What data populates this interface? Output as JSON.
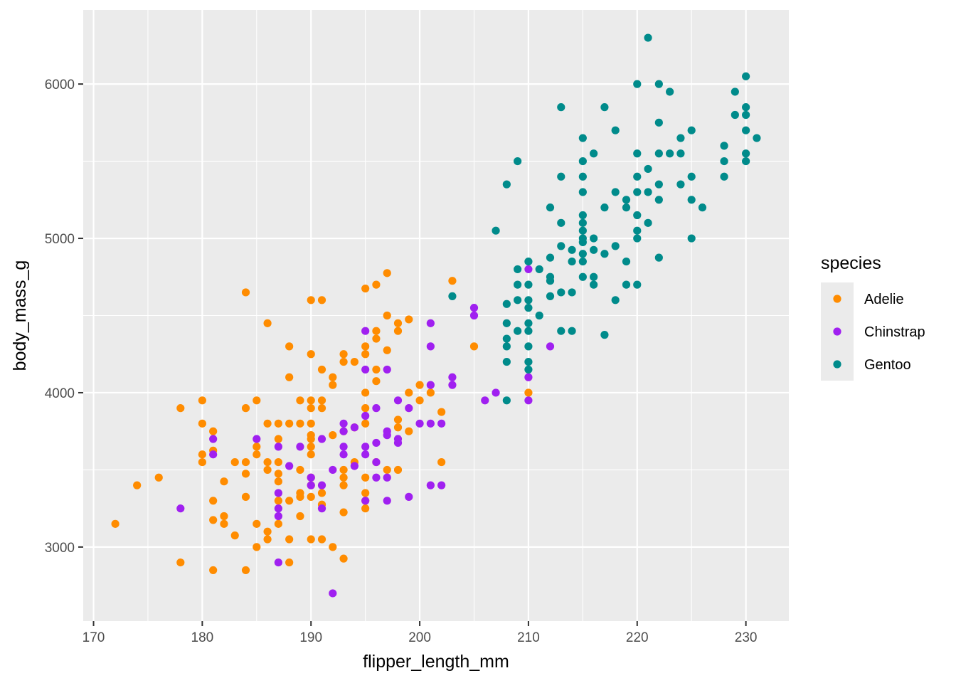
{
  "chart_data": {
    "type": "scatter",
    "title": "",
    "xlabel": "flipper_length_mm",
    "ylabel": "body_mass_g",
    "xlim": [
      169.05,
      233.95
    ],
    "ylim": [
      2520,
      6480
    ],
    "x_ticks": [
      170,
      180,
      190,
      200,
      210,
      220,
      230
    ],
    "y_ticks": [
      3000,
      4000,
      5000,
      6000
    ],
    "grid": true,
    "legend": {
      "title": "species",
      "position": "right"
    },
    "series": [
      {
        "name": "Adelie",
        "color": "#FF8C00",
        "points": [
          [
            172,
            3150
          ],
          [
            174,
            3400
          ],
          [
            176,
            3450
          ],
          [
            178,
            3900
          ],
          [
            178,
            2900
          ],
          [
            180,
            3950
          ],
          [
            180,
            3800
          ],
          [
            180,
            3600
          ],
          [
            180,
            3550
          ],
          [
            181,
            3750
          ],
          [
            181,
            3625
          ],
          [
            181,
            3300
          ],
          [
            181,
            3175
          ],
          [
            181,
            2850
          ],
          [
            182,
            3425
          ],
          [
            182,
            3200
          ],
          [
            182,
            3150
          ],
          [
            183,
            3550
          ],
          [
            183,
            3075
          ],
          [
            184,
            4650
          ],
          [
            184,
            3900
          ],
          [
            184,
            3550
          ],
          [
            184,
            3475
          ],
          [
            184,
            3325
          ],
          [
            184,
            2850
          ],
          [
            185,
            3950
          ],
          [
            185,
            3650
          ],
          [
            185,
            3600
          ],
          [
            185,
            3150
          ],
          [
            185,
            3000
          ],
          [
            186,
            4450
          ],
          [
            186,
            3800
          ],
          [
            186,
            3550
          ],
          [
            186,
            3500
          ],
          [
            186,
            3100
          ],
          [
            186,
            3050
          ],
          [
            187,
            3800
          ],
          [
            187,
            3700
          ],
          [
            187,
            3550
          ],
          [
            187,
            3475
          ],
          [
            187,
            3425
          ],
          [
            187,
            3300
          ],
          [
            187,
            3150
          ],
          [
            188,
            4300
          ],
          [
            188,
            4100
          ],
          [
            188,
            3800
          ],
          [
            188,
            3300
          ],
          [
            188,
            3050
          ],
          [
            188,
            2900
          ],
          [
            189,
            3950
          ],
          [
            189,
            3800
          ],
          [
            189,
            3500
          ],
          [
            189,
            3350
          ],
          [
            189,
            3325
          ],
          [
            189,
            3200
          ],
          [
            190,
            4600
          ],
          [
            190,
            4250
          ],
          [
            190,
            3950
          ],
          [
            190,
            3900
          ],
          [
            190,
            3800
          ],
          [
            190,
            3725
          ],
          [
            190,
            3700
          ],
          [
            190,
            3650
          ],
          [
            190,
            3600
          ],
          [
            190,
            3450
          ],
          [
            190,
            3400
          ],
          [
            190,
            3325
          ],
          [
            190,
            3050
          ],
          [
            191,
            4600
          ],
          [
            191,
            4150
          ],
          [
            191,
            3950
          ],
          [
            191,
            3900
          ],
          [
            191,
            3350
          ],
          [
            191,
            3275
          ],
          [
            191,
            3050
          ],
          [
            192,
            4100
          ],
          [
            192,
            4050
          ],
          [
            192,
            3725
          ],
          [
            192,
            3000
          ],
          [
            193,
            4250
          ],
          [
            193,
            4200
          ],
          [
            193,
            3750
          ],
          [
            193,
            3500
          ],
          [
            193,
            3450
          ],
          [
            193,
            3400
          ],
          [
            193,
            3225
          ],
          [
            193,
            2925
          ],
          [
            194,
            4200
          ],
          [
            194,
            3775
          ],
          [
            194,
            3550
          ],
          [
            195,
            4675
          ],
          [
            195,
            4300
          ],
          [
            195,
            4250
          ],
          [
            195,
            4000
          ],
          [
            195,
            3900
          ],
          [
            195,
            3800
          ],
          [
            195,
            3450
          ],
          [
            195,
            3350
          ],
          [
            195,
            3300
          ],
          [
            195,
            3250
          ],
          [
            196,
            4700
          ],
          [
            196,
            4400
          ],
          [
            196,
            4350
          ],
          [
            196,
            4150
          ],
          [
            196,
            4075
          ],
          [
            196,
            3550
          ],
          [
            197,
            4775
          ],
          [
            197,
            4500
          ],
          [
            197,
            4275
          ],
          [
            197,
            3500
          ],
          [
            198,
            4450
          ],
          [
            198,
            4400
          ],
          [
            198,
            3825
          ],
          [
            198,
            3775
          ],
          [
            198,
            3500
          ],
          [
            199,
            4475
          ],
          [
            199,
            4000
          ],
          [
            199,
            3750
          ],
          [
            200,
            4050
          ],
          [
            200,
            3950
          ],
          [
            201,
            4000
          ],
          [
            202,
            3875
          ],
          [
            202,
            3550
          ],
          [
            203,
            4725
          ],
          [
            205,
            4300
          ],
          [
            210,
            4000
          ]
        ]
      },
      {
        "name": "Chinstrap",
        "color": "#A020F0",
        "points": [
          [
            178,
            3250
          ],
          [
            181,
            3700
          ],
          [
            181,
            3600
          ],
          [
            185,
            3700
          ],
          [
            187,
            3650
          ],
          [
            187,
            3350
          ],
          [
            187,
            3250
          ],
          [
            187,
            3200
          ],
          [
            187,
            2900
          ],
          [
            188,
            3525
          ],
          [
            189,
            3650
          ],
          [
            190,
            3450
          ],
          [
            190,
            3400
          ],
          [
            191,
            3700
          ],
          [
            191,
            3400
          ],
          [
            191,
            3250
          ],
          [
            192,
            3500
          ],
          [
            192,
            2700
          ],
          [
            193,
            3800
          ],
          [
            193,
            3750
          ],
          [
            193,
            3650
          ],
          [
            193,
            3600
          ],
          [
            194,
            3775
          ],
          [
            194,
            3525
          ],
          [
            195,
            4400
          ],
          [
            195,
            4150
          ],
          [
            195,
            3850
          ],
          [
            195,
            3650
          ],
          [
            195,
            3600
          ],
          [
            195,
            3300
          ],
          [
            196,
            3900
          ],
          [
            196,
            3675
          ],
          [
            196,
            3550
          ],
          [
            196,
            3450
          ],
          [
            197,
            4150
          ],
          [
            197,
            3750
          ],
          [
            197,
            3725
          ],
          [
            197,
            3450
          ],
          [
            197,
            3300
          ],
          [
            198,
            3950
          ],
          [
            198,
            3700
          ],
          [
            198,
            3675
          ],
          [
            199,
            3900
          ],
          [
            199,
            3325
          ],
          [
            200,
            3800
          ],
          [
            201,
            4450
          ],
          [
            201,
            4300
          ],
          [
            201,
            4050
          ],
          [
            201,
            3800
          ],
          [
            201,
            3400
          ],
          [
            202,
            3800
          ],
          [
            202,
            3400
          ],
          [
            203,
            4100
          ],
          [
            203,
            4050
          ],
          [
            205,
            4550
          ],
          [
            205,
            4500
          ],
          [
            206,
            3950
          ],
          [
            207,
            4000
          ],
          [
            210,
            4800
          ],
          [
            210,
            4100
          ],
          [
            210,
            3950
          ],
          [
            212,
            4300
          ]
        ]
      },
      {
        "name": "Gentoo",
        "color": "#008B8B",
        "points": [
          [
            203,
            4625
          ],
          [
            207,
            5050
          ],
          [
            208,
            5350
          ],
          [
            208,
            4575
          ],
          [
            208,
            4450
          ],
          [
            208,
            4350
          ],
          [
            208,
            4300
          ],
          [
            208,
            4200
          ],
          [
            208,
            3950
          ],
          [
            209,
            5500
          ],
          [
            209,
            4800
          ],
          [
            209,
            4700
          ],
          [
            209,
            4600
          ],
          [
            209,
            4400
          ],
          [
            210,
            4850
          ],
          [
            210,
            4700
          ],
          [
            210,
            4600
          ],
          [
            210,
            4550
          ],
          [
            210,
            4450
          ],
          [
            210,
            4400
          ],
          [
            210,
            4300
          ],
          [
            210,
            4200
          ],
          [
            210,
            4150
          ],
          [
            211,
            4800
          ],
          [
            211,
            4500
          ],
          [
            212,
            5200
          ],
          [
            212,
            4875
          ],
          [
            212,
            4750
          ],
          [
            212,
            4725
          ],
          [
            212,
            4625
          ],
          [
            213,
            5850
          ],
          [
            213,
            5400
          ],
          [
            213,
            5100
          ],
          [
            213,
            4950
          ],
          [
            213,
            4650
          ],
          [
            213,
            4400
          ],
          [
            214,
            4925
          ],
          [
            214,
            4850
          ],
          [
            214,
            4650
          ],
          [
            214,
            4400
          ],
          [
            215,
            5650
          ],
          [
            215,
            5500
          ],
          [
            215,
            5400
          ],
          [
            215,
            5300
          ],
          [
            215,
            5150
          ],
          [
            215,
            5100
          ],
          [
            215,
            5050
          ],
          [
            215,
            5000
          ],
          [
            215,
            4975
          ],
          [
            215,
            4900
          ],
          [
            215,
            4850
          ],
          [
            215,
            4750
          ],
          [
            216,
            5550
          ],
          [
            216,
            5000
          ],
          [
            216,
            4925
          ],
          [
            216,
            4750
          ],
          [
            216,
            4700
          ],
          [
            217,
            5850
          ],
          [
            217,
            5200
          ],
          [
            217,
            4900
          ],
          [
            217,
            4375
          ],
          [
            218,
            5700
          ],
          [
            218,
            5300
          ],
          [
            218,
            4950
          ],
          [
            218,
            4600
          ],
          [
            219,
            5250
          ],
          [
            219,
            5200
          ],
          [
            219,
            4850
          ],
          [
            219,
            4700
          ],
          [
            220,
            6000
          ],
          [
            220,
            5550
          ],
          [
            220,
            5400
          ],
          [
            220,
            5300
          ],
          [
            220,
            5150
          ],
          [
            220,
            5050
          ],
          [
            220,
            5000
          ],
          [
            220,
            4700
          ],
          [
            221,
            6300
          ],
          [
            221,
            5450
          ],
          [
            221,
            5300
          ],
          [
            221,
            5100
          ],
          [
            222,
            6000
          ],
          [
            222,
            5750
          ],
          [
            222,
            5550
          ],
          [
            222,
            5350
          ],
          [
            222,
            5250
          ],
          [
            222,
            4875
          ],
          [
            223,
            5950
          ],
          [
            223,
            5550
          ],
          [
            224,
            5650
          ],
          [
            224,
            5550
          ],
          [
            224,
            5350
          ],
          [
            225,
            5700
          ],
          [
            225,
            5400
          ],
          [
            225,
            5250
          ],
          [
            225,
            5000
          ],
          [
            226,
            5200
          ],
          [
            228,
            5600
          ],
          [
            228,
            5500
          ],
          [
            228,
            5400
          ],
          [
            229,
            5950
          ],
          [
            229,
            5800
          ],
          [
            230,
            6050
          ],
          [
            230,
            5850
          ],
          [
            230,
            5800
          ],
          [
            230,
            5700
          ],
          [
            230,
            5550
          ],
          [
            230,
            5500
          ],
          [
            231,
            5650
          ]
        ]
      }
    ]
  }
}
